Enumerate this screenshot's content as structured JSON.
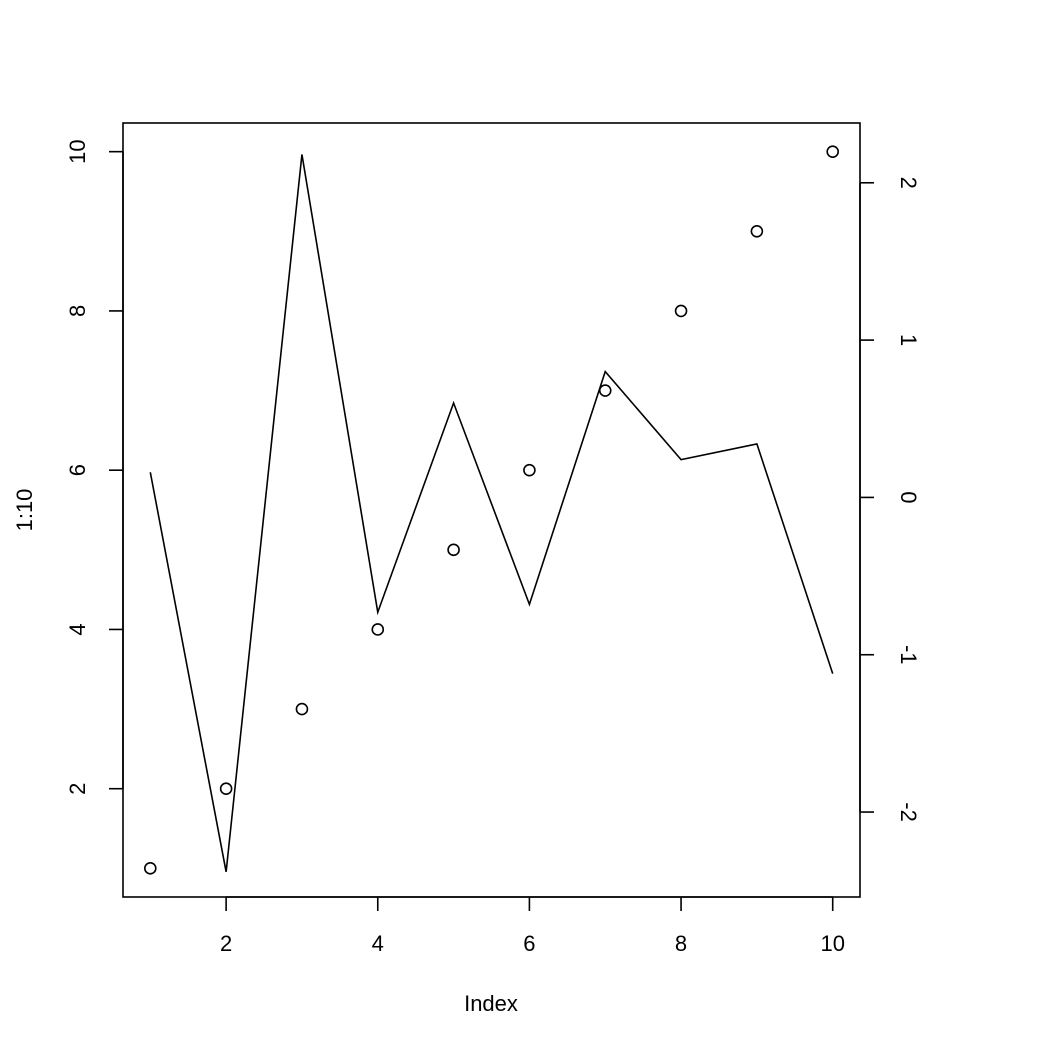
{
  "chart_data": {
    "type": "scatter",
    "title": "",
    "xlabel": "Index",
    "ylabel": "1:10",
    "y2label": "",
    "xlim": [
      0.64,
      10.36
    ],
    "ylim": [
      0.64,
      10.36
    ],
    "y2lim": [
      -2.54,
      2.38
    ],
    "xticks": [
      2,
      4,
      6,
      8,
      10
    ],
    "yticks": [
      2,
      4,
      6,
      8,
      10
    ],
    "y2ticks": [
      -2,
      -1,
      0,
      1,
      2
    ],
    "xtick_labels": [
      "2",
      "4",
      "6",
      "8",
      "10"
    ],
    "ytick_labels": [
      "2",
      "4",
      "6",
      "8",
      "10"
    ],
    "y2tick_labels": [
      "-2",
      "-1",
      "0",
      "1",
      "2"
    ],
    "grid": false,
    "legend": "none",
    "series": [
      {
        "type": "points",
        "axis": "left",
        "marker": "open-circle",
        "x": [
          1,
          2,
          3,
          4,
          5,
          6,
          7,
          8,
          9,
          10
        ],
        "y": [
          1,
          2,
          3,
          4,
          5,
          6,
          7,
          8,
          9,
          10
        ]
      },
      {
        "type": "line",
        "axis": "right",
        "x": [
          1,
          2,
          3,
          4,
          5,
          6,
          7,
          8,
          9,
          10
        ],
        "y": [
          0.16,
          -2.38,
          2.18,
          -0.73,
          0.6,
          -0.68,
          0.8,
          0.24,
          0.34,
          -1.12
        ]
      }
    ]
  }
}
